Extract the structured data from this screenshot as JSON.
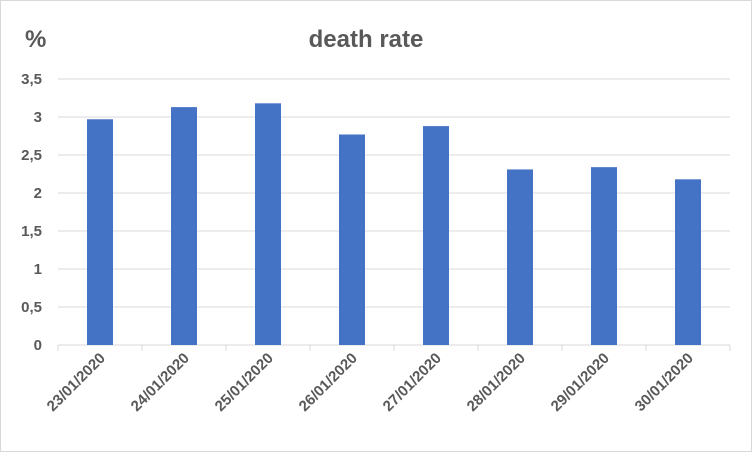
{
  "chart_data": {
    "type": "bar",
    "title": "death rate",
    "ylabel": "%",
    "xlabel": "",
    "categories": [
      "23/01/2020",
      "24/01/2020",
      "25/01/2020",
      "26/01/2020",
      "27/01/2020",
      "28/01/2020",
      "29/01/2020",
      "30/01/2020"
    ],
    "values": [
      2.97,
      3.13,
      3.18,
      2.77,
      2.88,
      2.31,
      2.34,
      2.18
    ],
    "ylim": [
      0,
      3.5
    ],
    "yticks": [
      "0",
      "0,5",
      "1",
      "1,5",
      "2",
      "2,5",
      "3",
      "3,5"
    ],
    "grid": true,
    "legend": "none",
    "bar_color": "#4472c4"
  }
}
